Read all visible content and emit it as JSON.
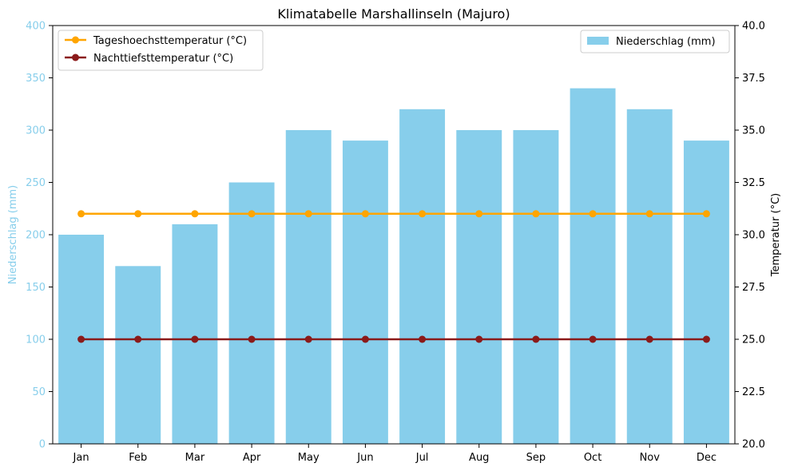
{
  "chart_data": {
    "type": "bar",
    "title": "Klimatabelle Marshallinseln (Majuro)",
    "categories": [
      "Jan",
      "Feb",
      "Mar",
      "Apr",
      "May",
      "Jun",
      "Jul",
      "Aug",
      "Sep",
      "Oct",
      "Nov",
      "Dec"
    ],
    "left_axis": {
      "label": "Niederschlag (mm)",
      "ylim": [
        0,
        400
      ],
      "ticks": [
        "0",
        "50",
        "100",
        "150",
        "200",
        "250",
        "300",
        "350",
        "400"
      ],
      "color": "#87ceeb"
    },
    "right_axis": {
      "label": "Temperatur (°C)",
      "ylim": [
        20,
        40
      ],
      "ticks": [
        "20.0",
        "22.5",
        "25.0",
        "27.5",
        "30.0",
        "32.5",
        "35.0",
        "37.5",
        "40.0"
      ],
      "color": "#000000"
    },
    "bar_series": {
      "name": "Niederschlag (mm)",
      "axis": "left",
      "color": "#87ceeb",
      "values": [
        200,
        170,
        210,
        250,
        300,
        290,
        320,
        300,
        300,
        340,
        320,
        290
      ]
    },
    "line_series": [
      {
        "name": "Tageshoechsttemperatur (°C)",
        "axis": "right",
        "color": "#ffa500",
        "values": [
          31,
          31,
          31,
          31,
          31,
          31,
          31,
          31,
          31,
          31,
          31,
          31
        ]
      },
      {
        "name": "Nachttiefsttemperatur (°C)",
        "axis": "right",
        "color": "#8b1a1a",
        "values": [
          25,
          25,
          25,
          25,
          25,
          25,
          25,
          25,
          25,
          25,
          25,
          25
        ]
      }
    ],
    "legends": {
      "lines": "top-left",
      "bars": "top-right"
    },
    "grid": false
  }
}
